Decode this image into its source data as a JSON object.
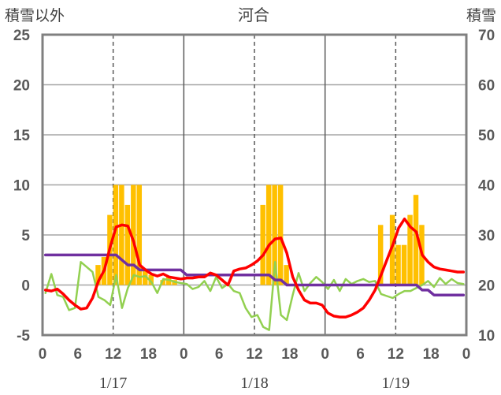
{
  "chart_data": {
    "type": "bar+line",
    "title": "河合",
    "left_axis_caption": "積雪以外",
    "right_axis_caption": "積雪",
    "y_left": {
      "min": -5,
      "max": 25,
      "ticks": [
        25,
        20,
        15,
        10,
        5,
        0,
        -5
      ]
    },
    "y_right": {
      "min": 10,
      "max": 70,
      "ticks": [
        70,
        60,
        50,
        40,
        30,
        20,
        10
      ]
    },
    "x": {
      "min": 0,
      "max": 72,
      "hour_ticks": [
        0,
        6,
        12,
        18,
        0,
        6,
        12,
        18,
        0,
        6,
        12,
        18,
        0
      ]
    },
    "days": [
      {
        "label": "1/17"
      },
      {
        "label": "1/18"
      },
      {
        "label": "1/19"
      }
    ],
    "colors": {
      "bar": "#FFC000",
      "red": "#FF0000",
      "green": "#92D050",
      "purple": "#7030A0",
      "frame": "#808080"
    },
    "series": [
      {
        "kind": "bar",
        "axis": "left",
        "values": [
          [
            8,
            0
          ],
          [
            9,
            2
          ],
          [
            10,
            2.8
          ],
          [
            11,
            7
          ],
          [
            12,
            10
          ],
          [
            13,
            10
          ],
          [
            14,
            8
          ],
          [
            15,
            10
          ],
          [
            16,
            10
          ],
          [
            17,
            1.5
          ],
          [
            18,
            1
          ],
          [
            19,
            0
          ],
          [
            20,
            0.5
          ],
          [
            21,
            0.8
          ],
          [
            22,
            0.5
          ],
          [
            23,
            0
          ],
          [
            37,
            8
          ],
          [
            38,
            10
          ],
          [
            39,
            10
          ],
          [
            40,
            10
          ],
          [
            41,
            2
          ],
          [
            57,
            6
          ],
          [
            58,
            0
          ],
          [
            59,
            7
          ],
          [
            60,
            4
          ],
          [
            61,
            4
          ],
          [
            62,
            7
          ],
          [
            63,
            9
          ],
          [
            64,
            6
          ]
        ]
      },
      {
        "kind": "line",
        "axis": "left",
        "color_key": "red",
        "points": [
          [
            0,
            -0.5
          ],
          [
            1,
            -0.6
          ],
          [
            2,
            -0.4
          ],
          [
            3,
            -0.9
          ],
          [
            4,
            -1.5
          ],
          [
            5,
            -2.0
          ],
          [
            6,
            -2.4
          ],
          [
            7,
            -2.3
          ],
          [
            8,
            -1.3
          ],
          [
            9,
            0.4
          ],
          [
            10,
            1.5
          ],
          [
            11,
            3.8
          ],
          [
            12,
            5.8
          ],
          [
            13,
            6.0
          ],
          [
            14,
            5.9
          ],
          [
            15,
            4.3
          ],
          [
            16,
            2.0
          ],
          [
            17,
            1.5
          ],
          [
            18,
            1.1
          ],
          [
            19,
            0.9
          ],
          [
            20,
            1.1
          ],
          [
            21,
            0.8
          ],
          [
            22,
            0.7
          ],
          [
            23,
            0.6
          ],
          [
            24,
            0.7
          ],
          [
            25,
            0.7
          ],
          [
            26,
            0.8
          ],
          [
            27,
            0.8
          ],
          [
            28,
            1.2
          ],
          [
            29,
            1.0
          ],
          [
            30,
            0.5
          ],
          [
            31,
            0.0
          ],
          [
            32,
            1.4
          ],
          [
            33,
            1.6
          ],
          [
            34,
            1.7
          ],
          [
            35,
            2.0
          ],
          [
            36,
            2.4
          ],
          [
            37,
            3.0
          ],
          [
            38,
            4.0
          ],
          [
            39,
            4.6
          ],
          [
            40,
            4.7
          ],
          [
            41,
            3.2
          ],
          [
            42,
            0.8
          ],
          [
            43,
            -0.5
          ],
          [
            44,
            -1.5
          ],
          [
            45,
            -1.8
          ],
          [
            46,
            -1.8
          ],
          [
            47,
            -2.0
          ],
          [
            48,
            -2.8
          ],
          [
            49,
            -3.1
          ],
          [
            50,
            -3.2
          ],
          [
            51,
            -3.2
          ],
          [
            52,
            -3.0
          ],
          [
            53,
            -2.7
          ],
          [
            54,
            -2.3
          ],
          [
            55,
            -1.5
          ],
          [
            56,
            -0.5
          ],
          [
            57,
            1.0
          ],
          [
            58,
            2.5
          ],
          [
            59,
            4.0
          ],
          [
            60,
            5.7
          ],
          [
            61,
            6.6
          ],
          [
            62,
            5.8
          ],
          [
            63,
            5.3
          ],
          [
            64,
            3.0
          ],
          [
            65,
            2.3
          ],
          [
            66,
            1.8
          ],
          [
            67,
            1.6
          ],
          [
            68,
            1.5
          ],
          [
            69,
            1.4
          ],
          [
            70,
            1.3
          ],
          [
            71,
            1.3
          ]
        ]
      },
      {
        "kind": "line",
        "axis": "left",
        "color_key": "green",
        "points": [
          [
            0,
            -0.8
          ],
          [
            1,
            1.1
          ],
          [
            2,
            -1.0
          ],
          [
            3,
            -1.2
          ],
          [
            4,
            -2.5
          ],
          [
            5,
            -2.3
          ],
          [
            6,
            2.3
          ],
          [
            7,
            1.8
          ],
          [
            8,
            1.3
          ],
          [
            9,
            -1.2
          ],
          [
            10,
            -1.5
          ],
          [
            11,
            -2.0
          ],
          [
            12,
            1.0
          ],
          [
            13,
            -2.3
          ],
          [
            14,
            -0.3
          ],
          [
            15,
            1.0
          ],
          [
            16,
            0.8
          ],
          [
            17,
            0.9
          ],
          [
            18,
            0.3
          ],
          [
            19,
            -0.8
          ],
          [
            20,
            0.6
          ],
          [
            21,
            0.5
          ],
          [
            22,
            0.3
          ],
          [
            23,
            0.2
          ],
          [
            24,
            0.1
          ],
          [
            25,
            -0.4
          ],
          [
            26,
            -0.2
          ],
          [
            27,
            0.4
          ],
          [
            28,
            -0.6
          ],
          [
            29,
            0.8
          ],
          [
            30,
            -0.3
          ],
          [
            31,
            0.1
          ],
          [
            32,
            -0.6
          ],
          [
            33,
            -0.8
          ],
          [
            34,
            -2.3
          ],
          [
            35,
            -3.2
          ],
          [
            36,
            -3.0
          ],
          [
            37,
            -4.2
          ],
          [
            38,
            -4.5
          ],
          [
            39,
            2.3
          ],
          [
            40,
            -3.0
          ],
          [
            41,
            -3.5
          ],
          [
            42,
            -1.0
          ],
          [
            43,
            1.2
          ],
          [
            44,
            -0.6
          ],
          [
            45,
            0.2
          ],
          [
            46,
            0.8
          ],
          [
            47,
            0.3
          ],
          [
            48,
            -0.4
          ],
          [
            49,
            0.5
          ],
          [
            50,
            -0.6
          ],
          [
            51,
            0.6
          ],
          [
            52,
            0.1
          ],
          [
            53,
            0.4
          ],
          [
            54,
            0.6
          ],
          [
            55,
            0.3
          ],
          [
            56,
            0.4
          ],
          [
            57,
            -0.9
          ],
          [
            58,
            -1.1
          ],
          [
            59,
            -1.3
          ],
          [
            60,
            -0.9
          ],
          [
            61,
            -0.6
          ],
          [
            62,
            -0.6
          ],
          [
            63,
            -0.3
          ],
          [
            64,
            0.0
          ],
          [
            65,
            0.4
          ],
          [
            66,
            -0.2
          ],
          [
            67,
            0.7
          ],
          [
            68,
            0.1
          ],
          [
            69,
            0.6
          ],
          [
            70,
            0.2
          ],
          [
            71,
            0.1
          ]
        ]
      },
      {
        "kind": "line",
        "axis": "right",
        "color_key": "purple",
        "points": [
          [
            0,
            26
          ],
          [
            12,
            26
          ],
          [
            13,
            25
          ],
          [
            14,
            24
          ],
          [
            15,
            24
          ],
          [
            16,
            23
          ],
          [
            17,
            23
          ],
          [
            23,
            23
          ],
          [
            24,
            22
          ],
          [
            38,
            22
          ],
          [
            39,
            21
          ],
          [
            40,
            21
          ],
          [
            41,
            20
          ],
          [
            63,
            20
          ],
          [
            64,
            19
          ],
          [
            65,
            19
          ],
          [
            66,
            18
          ],
          [
            71,
            18
          ]
        ]
      }
    ]
  }
}
